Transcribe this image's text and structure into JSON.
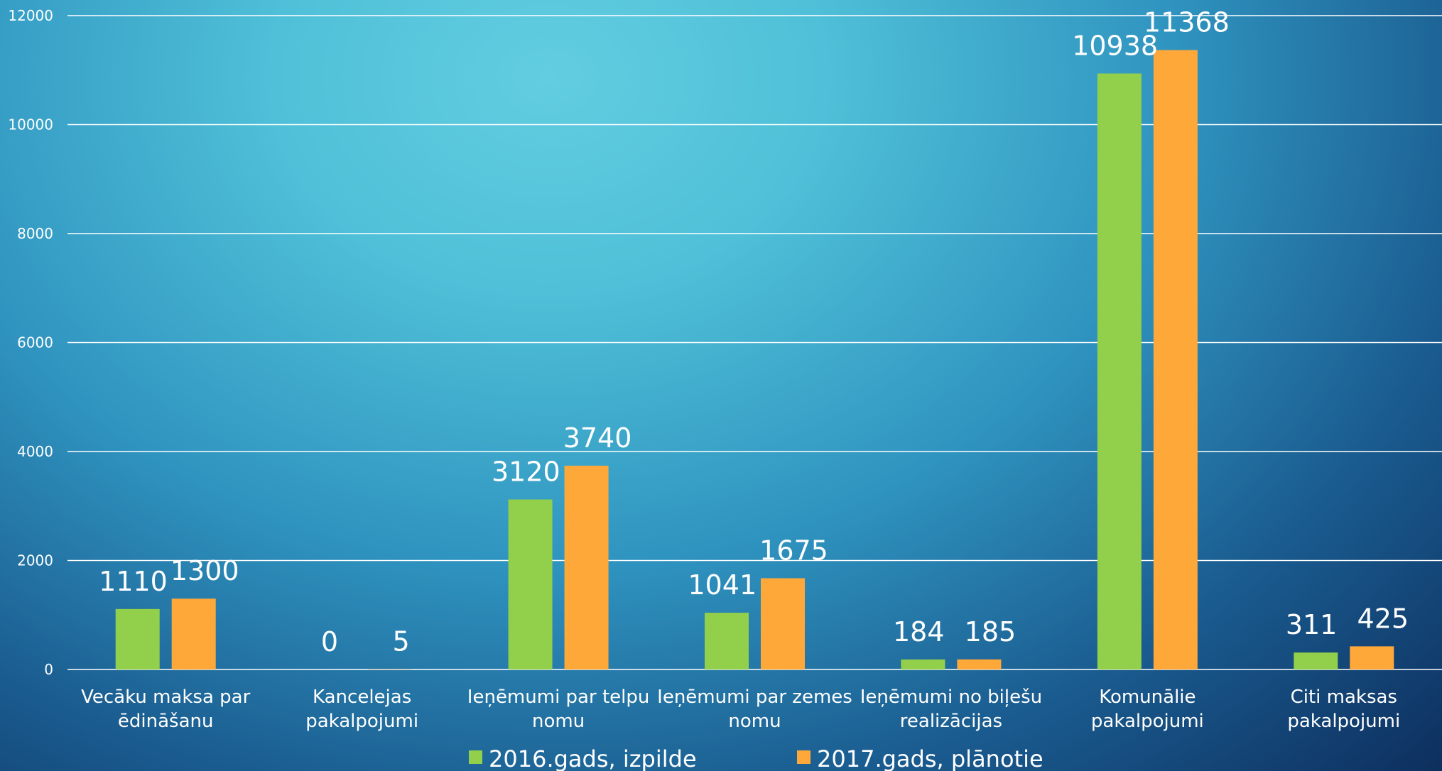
{
  "chart_data": {
    "type": "bar",
    "categories": [
      [
        "Vecāku maksa par",
        "ēdināšanu"
      ],
      [
        "Kancelejas",
        "pakalpojumi"
      ],
      [
        "Ieņēmumi par telpu",
        "nomu"
      ],
      [
        "Ieņēmumi par zemes",
        "nomu"
      ],
      [
        "Ieņēmumi no biļešu",
        "realizācijas"
      ],
      [
        "Komunālie",
        "pakalpojumi"
      ],
      [
        "Citi maksas",
        "pakalpojumi"
      ]
    ],
    "series": [
      {
        "name": "2016.gads, izpilde",
        "color": "#92cf4a",
        "values": [
          1110,
          0,
          3120,
          1041,
          184,
          10938,
          311
        ]
      },
      {
        "name": "2017.gads, plānotie",
        "color": "#ffa83a",
        "values": [
          1300,
          5,
          3740,
          1675,
          185,
          11368,
          425
        ]
      }
    ],
    "ylim": [
      0,
      12000
    ],
    "yticks": [
      0,
      2000,
      4000,
      6000,
      8000,
      10000,
      12000
    ],
    "grid": true,
    "legend": "bottom"
  }
}
